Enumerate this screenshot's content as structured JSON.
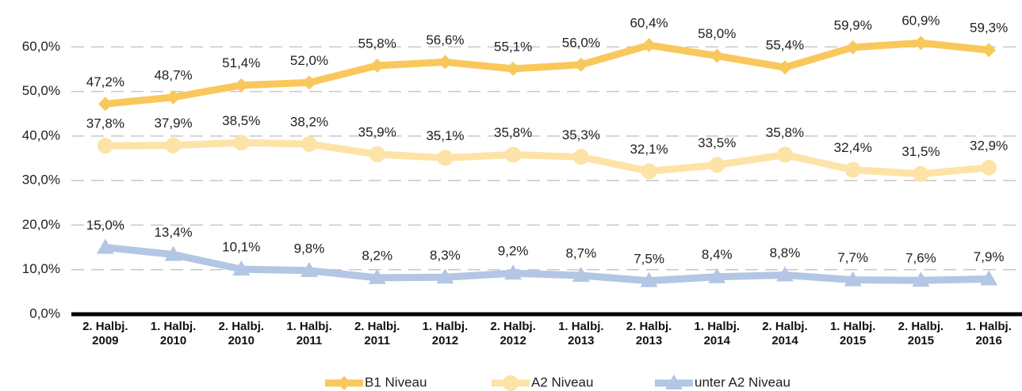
{
  "chart_data": {
    "type": "line",
    "categories": [
      "2. Halbj. 2009",
      "1. Halbj. 2010",
      "2. Halbj. 2010",
      "1. Halbj. 2011",
      "2. Halbj. 2011",
      "1. Halbj. 2012",
      "2. Halbj. 2012",
      "1. Halbj. 2013",
      "2. Halbj. 2013",
      "1. Halbj. 2014",
      "2. Halbj. 2014",
      "1. Halbj. 2015",
      "2. Halbj. 2015",
      "1. Halbj. 2016"
    ],
    "series": [
      {
        "name": "B1 Niveau",
        "color": "#f9c85c",
        "marker": "diamond",
        "values": [
          47.2,
          48.7,
          51.4,
          52.0,
          55.8,
          56.6,
          55.1,
          56.0,
          60.4,
          58.0,
          55.4,
          59.9,
          60.9,
          59.3
        ],
        "value_labels": [
          "47,2%",
          "48,7%",
          "51,4%",
          "52,0%",
          "55,8%",
          "56,6%",
          "55,1%",
          "56,0%",
          "60,4%",
          "58,0%",
          "55,4%",
          "59,9%",
          "60,9%",
          "59,3%"
        ]
      },
      {
        "name": "A2 Niveau",
        "color": "#fde3a7",
        "marker": "circle",
        "values": [
          37.8,
          37.9,
          38.5,
          38.2,
          35.9,
          35.1,
          35.8,
          35.3,
          32.1,
          33.5,
          35.8,
          32.4,
          31.5,
          32.9
        ],
        "value_labels": [
          "37,8%",
          "37,9%",
          "38,5%",
          "38,2%",
          "35,9%",
          "35,1%",
          "35,8%",
          "35,3%",
          "32,1%",
          "33,5%",
          "35,8%",
          "32,4%",
          "31,5%",
          "32,9%"
        ]
      },
      {
        "name": "unter A2 Niveau",
        "color": "#b3c6e4",
        "marker": "triangle",
        "values": [
          15.0,
          13.4,
          10.1,
          9.8,
          8.2,
          8.3,
          9.2,
          8.7,
          7.5,
          8.4,
          8.8,
          7.7,
          7.6,
          7.9
        ],
        "value_labels": [
          "15,0%",
          "13,4%",
          "10,1%",
          "9,8%",
          "8,2%",
          "8,3%",
          "9,2%",
          "8,7%",
          "7,5%",
          "8,4%",
          "8,8%",
          "7,7%",
          "7,6%",
          "7,9%"
        ]
      }
    ],
    "ylim": [
      0,
      70
    ],
    "yticks": [
      {
        "value": 0,
        "label": "0,0%"
      },
      {
        "value": 10,
        "label": "10,0%"
      },
      {
        "value": 20,
        "label": "20,0%"
      },
      {
        "value": 30,
        "label": "30,0%"
      },
      {
        "value": 40,
        "label": "40,0%"
      },
      {
        "value": 50,
        "label": "50,0%"
      },
      {
        "value": 60,
        "label": "60,0%"
      }
    ],
    "grid": true,
    "legend": "bottom"
  }
}
